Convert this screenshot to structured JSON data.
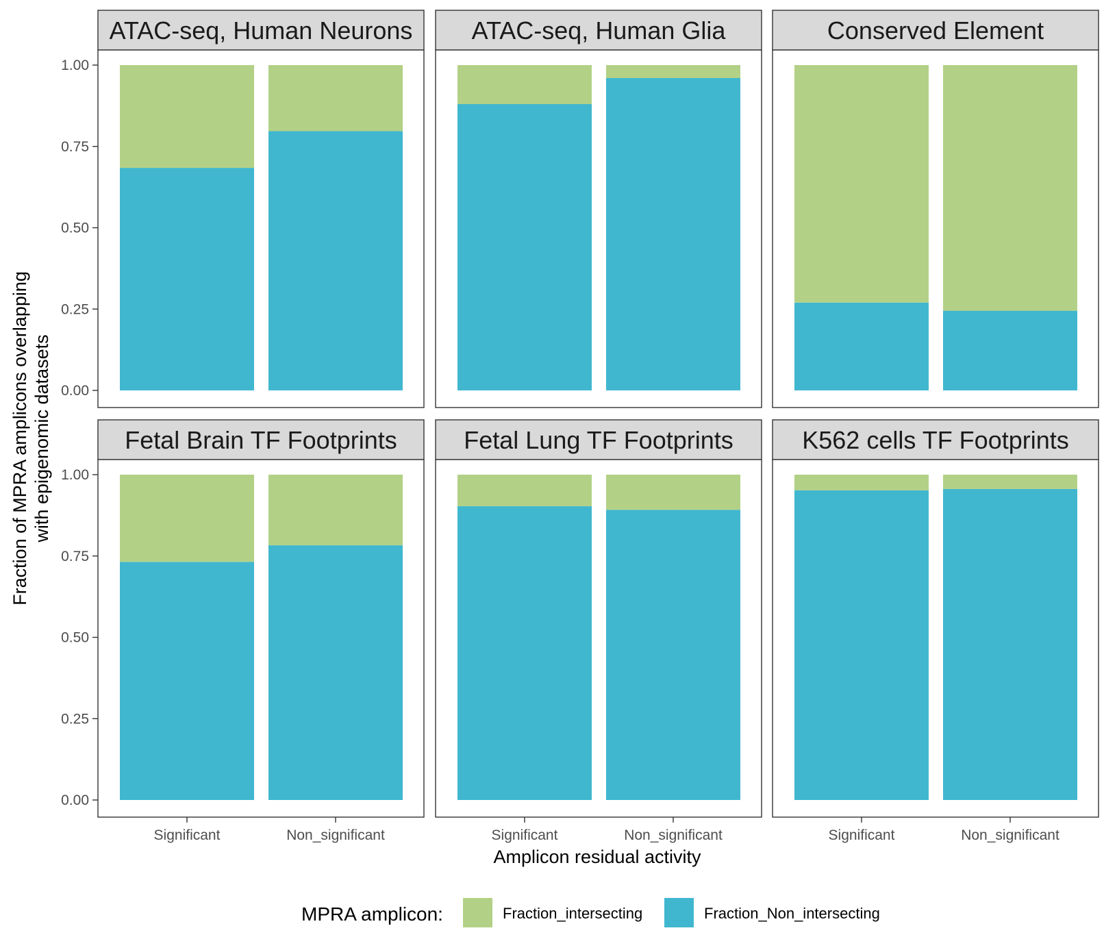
{
  "chart_data": {
    "type": "bar",
    "stacked": true,
    "facets": [
      {
        "title": "ATAC-seq, Human Neurons",
        "categories": [
          "Significant",
          "Non_significant"
        ],
        "Fraction_Non_intersecting": [
          0.684,
          0.797
        ],
        "Fraction_intersecting": [
          0.316,
          0.203
        ]
      },
      {
        "title": "ATAC-seq, Human Glia",
        "categories": [
          "Significant",
          "Non_significant"
        ],
        "Fraction_Non_intersecting": [
          0.88,
          0.96
        ],
        "Fraction_intersecting": [
          0.12,
          0.04
        ]
      },
      {
        "title": "Conserved Element",
        "categories": [
          "Significant",
          "Non_significant"
        ],
        "Fraction_Non_intersecting": [
          0.27,
          0.245
        ],
        "Fraction_intersecting": [
          0.73,
          0.755
        ]
      },
      {
        "title": "Fetal Brain TF Footprints",
        "categories": [
          "Significant",
          "Non_significant"
        ],
        "Fraction_Non_intersecting": [
          0.732,
          0.783
        ],
        "Fraction_intersecting": [
          0.268,
          0.217
        ]
      },
      {
        "title": "Fetal Lung TF Footprints",
        "categories": [
          "Significant",
          "Non_significant"
        ],
        "Fraction_Non_intersecting": [
          0.903,
          0.892
        ],
        "Fraction_intersecting": [
          0.097,
          0.108
        ]
      },
      {
        "title": "K562 cells TF Footprints",
        "categories": [
          "Significant",
          "Non_significant"
        ],
        "Fraction_Non_intersecting": [
          0.952,
          0.956
        ],
        "Fraction_intersecting": [
          0.048,
          0.044
        ]
      }
    ],
    "ylim": [
      0,
      1
    ],
    "yticks": [
      "0.00",
      "0.25",
      "0.50",
      "0.75",
      "1.00"
    ],
    "xlabel": "Amplicon residual activity",
    "ylabel_lines": [
      "Fraction of MPRA amplicons overlapping",
      "with epigenomic datasets"
    ],
    "legend": {
      "title": "MPRA amplicon:",
      "position": "bottom",
      "entries": [
        {
          "name": "Fraction_intersecting",
          "color": "#B3D186"
        },
        {
          "name": "Fraction_Non_intersecting",
          "color": "#40B7CF"
        }
      ]
    },
    "grid": false
  }
}
